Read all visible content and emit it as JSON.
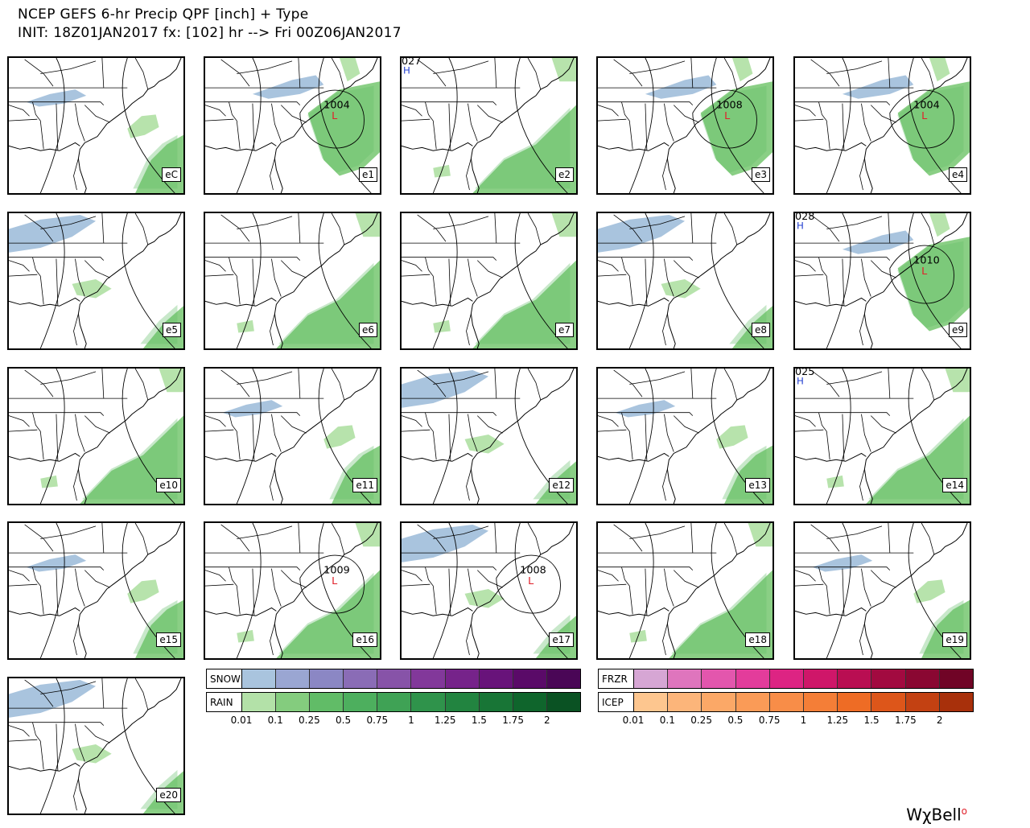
{
  "title": {
    "line1": "NCEP GEFS 6-hr Precip QPF [inch] + Type",
    "line2": "INIT: 18Z01JAN2017 fx: [102] hr --> Fri 00Z06JAN2017"
  },
  "colors": {
    "snow": [
      "#a9c4de",
      "#9aa6d2",
      "#8b87c4",
      "#8a6cb6",
      "#8753a8",
      "#82389a",
      "#76238a",
      "#68137a",
      "#5a0a68",
      "#4a0656"
    ],
    "rain": [
      "#b3e1a8",
      "#84cc7e",
      "#61bc67",
      "#4daf5e",
      "#3fa255",
      "#2f934b",
      "#228440",
      "#187536",
      "#0f652c",
      "#0a5223"
    ],
    "frzr": [
      "#d6a6d4",
      "#df75bd",
      "#e356ad",
      "#e33c9b",
      "#dd2483",
      "#cf1669",
      "#b90e52",
      "#a20a40",
      "#8a0732",
      "#700426"
    ],
    "icep": [
      "#fdc68f",
      "#fcb57a",
      "#fba867",
      "#fa9b57",
      "#f88d48",
      "#f47e37",
      "#ee6c25",
      "#dd561a",
      "#c34112",
      "#a8300b"
    ]
  },
  "legend": {
    "snow_label": "SNOW",
    "rain_label": "RAIN",
    "frzr_label": "FRZR",
    "icep_label": "ICEP",
    "ticks": [
      "0.01",
      "0.1",
      "0.25",
      "0.5",
      "0.75",
      "1",
      "1.25",
      "1.5",
      "1.75",
      "2"
    ]
  },
  "panels": [
    {
      "label": "eC",
      "lows": [],
      "highs": [],
      "precip": "a"
    },
    {
      "label": "e1",
      "lows": [
        {
          "value": "1004"
        }
      ],
      "highs": [],
      "precip": "b"
    },
    {
      "label": "e2",
      "lows": [],
      "highs": [
        {
          "value": "027"
        }
      ],
      "precip": "c"
    },
    {
      "label": "e3",
      "lows": [
        {
          "value": "1008"
        }
      ],
      "highs": [],
      "precip": "b"
    },
    {
      "label": "e4",
      "lows": [
        {
          "value": "1004"
        }
      ],
      "highs": [],
      "precip": "b"
    },
    {
      "label": "e5",
      "lows": [],
      "highs": [],
      "precip": "d"
    },
    {
      "label": "e6",
      "lows": [],
      "highs": [],
      "precip": "c"
    },
    {
      "label": "e7",
      "lows": [],
      "highs": [],
      "precip": "c"
    },
    {
      "label": "e8",
      "lows": [],
      "highs": [],
      "precip": "d"
    },
    {
      "label": "e9",
      "lows": [
        {
          "value": "1010"
        }
      ],
      "highs": [
        {
          "value": "028"
        }
      ],
      "precip": "b"
    },
    {
      "label": "e10",
      "lows": [],
      "highs": [],
      "precip": "c"
    },
    {
      "label": "e11",
      "lows": [],
      "highs": [],
      "precip": "a"
    },
    {
      "label": "e12",
      "lows": [],
      "highs": [],
      "precip": "d"
    },
    {
      "label": "e13",
      "lows": [],
      "highs": [],
      "precip": "a"
    },
    {
      "label": "e14",
      "lows": [],
      "highs": [
        {
          "value": "025"
        }
      ],
      "precip": "c"
    },
    {
      "label": "e15",
      "lows": [],
      "highs": [],
      "precip": "a"
    },
    {
      "label": "e16",
      "lows": [
        {
          "value": "1009"
        }
      ],
      "highs": [],
      "precip": "c"
    },
    {
      "label": "e17",
      "lows": [
        {
          "value": "1008"
        }
      ],
      "highs": [],
      "precip": "d"
    },
    {
      "label": "e18",
      "lows": [],
      "highs": [],
      "precip": "c"
    },
    {
      "label": "e19",
      "lows": [],
      "highs": [],
      "precip": "a"
    },
    {
      "label": "e20",
      "lows": [],
      "highs": [],
      "precip": "d"
    }
  ],
  "brand": "WχBell"
}
